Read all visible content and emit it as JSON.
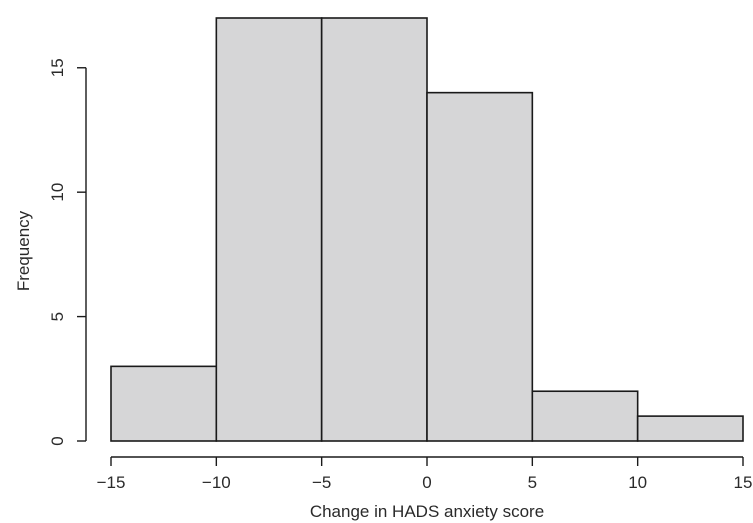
{
  "chart_data": {
    "type": "bar",
    "histogram": true,
    "bins": [
      {
        "from": -15,
        "to": -10,
        "count": 3
      },
      {
        "from": -10,
        "to": -5,
        "count": 17
      },
      {
        "from": -5,
        "to": 0,
        "count": 17
      },
      {
        "from": 0,
        "to": 5,
        "count": 14
      },
      {
        "from": 5,
        "to": 10,
        "count": 2
      },
      {
        "from": 10,
        "to": 15,
        "count": 1
      }
    ],
    "xlabel": "Change in HADS anxiety score",
    "ylabel": "Frequency",
    "xlim": [
      -15,
      15
    ],
    "ylim": [
      0,
      17
    ],
    "x_ticks": [
      -15,
      -10,
      -5,
      0,
      5,
      10,
      15
    ],
    "x_tick_labels": [
      "−15",
      "−10",
      "−5",
      "0",
      "5",
      "10",
      "15"
    ],
    "y_ticks": [
      0,
      5,
      10,
      15
    ],
    "y_tick_labels": [
      "0",
      "5",
      "10",
      "15"
    ],
    "grid": false,
    "colors": {
      "bar_fill": "#d6d6d7",
      "bar_stroke": "#1a1a1a"
    }
  }
}
